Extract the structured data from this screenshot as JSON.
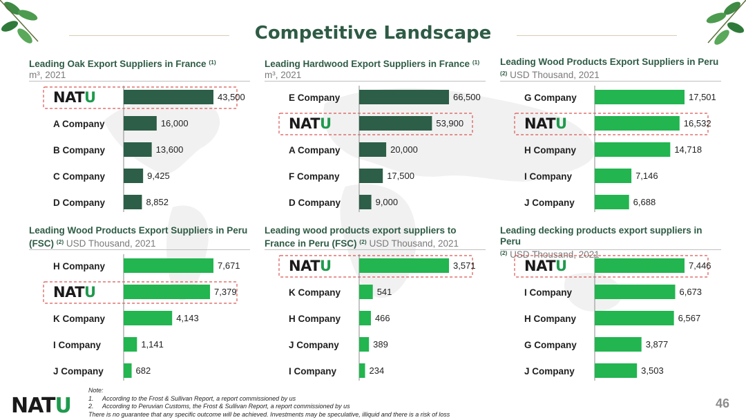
{
  "header": {
    "title": "Competitive Landscape"
  },
  "brand": {
    "name_main": "NAT",
    "name_accent": "U",
    "color_dark": "#2e5b45",
    "color_accent": "#1f9a4e",
    "bar_dark": "#2d5e47",
    "bar_green": "#22b550",
    "highlight": "#d9534f"
  },
  "panels": [
    {
      "title": "Leading Oak Export Suppliers in France",
      "note_ref": "(1)",
      "unit": "m³, 2021"
    },
    {
      "title": "Leading Hardwood Export Suppliers in France",
      "note_ref": "(1)",
      "unit": "m³, 2021"
    },
    {
      "title": "Leading Wood Products Export Suppliers in Peru",
      "note_ref": "(2)",
      "unit": "USD Thousand, 2021"
    },
    {
      "title": "Leading Wood Products Export Suppliers in Peru (FSC)",
      "note_ref": "(2)",
      "unit": "USD Thousand, 2021"
    },
    {
      "title": "Leading wood products export suppliers to France in Peru (FSC)",
      "note_ref": "(2)",
      "unit": "USD Thousand, 2021"
    },
    {
      "title": "Leading decking products export suppliers in Peru",
      "note_ref": "(2)",
      "unit": "USD Thousand, 2021"
    }
  ],
  "chart_data": [
    {
      "type": "bar",
      "orientation": "horizontal",
      "color": "dark",
      "categories": [
        "NATU",
        "A Company",
        "B Company",
        "C Company",
        "D Company"
      ],
      "values": [
        43500,
        16000,
        13600,
        9425,
        8852
      ],
      "labels": [
        "43,500",
        "16,000",
        "13,600",
        "9,425",
        "8,852"
      ],
      "highlight": 0
    },
    {
      "type": "bar",
      "orientation": "horizontal",
      "color": "dark",
      "categories": [
        "E Company",
        "NATU",
        "A Company",
        "F Company",
        "D Company"
      ],
      "values": [
        66500,
        53900,
        20000,
        17500,
        9000
      ],
      "labels": [
        "66,500",
        "53,900",
        "20,000",
        "17,500",
        "9,000"
      ],
      "highlight": 1
    },
    {
      "type": "bar",
      "orientation": "horizontal",
      "color": "green",
      "categories": [
        "G Company",
        "NATU",
        "H Company",
        "I Company",
        "J Company"
      ],
      "values": [
        17501,
        16532,
        14718,
        7146,
        6688
      ],
      "labels": [
        "17,501",
        "16,532",
        "14,718",
        "7,146",
        "6,688"
      ],
      "highlight": 1
    },
    {
      "type": "bar",
      "orientation": "horizontal",
      "color": "green",
      "categories": [
        "H Company",
        "NATU",
        "K Company",
        "I Company",
        "J Company"
      ],
      "values": [
        7671,
        7379,
        4143,
        1141,
        682
      ],
      "labels": [
        "7,671",
        "7,379",
        "4,143",
        "1,141",
        "682"
      ],
      "highlight": 1
    },
    {
      "type": "bar",
      "orientation": "horizontal",
      "color": "green",
      "categories": [
        "NATU",
        "K Company",
        "H Company",
        "J Company",
        "I Company"
      ],
      "values": [
        3571,
        541,
        466,
        389,
        234
      ],
      "labels": [
        "3,571",
        "541",
        "466",
        "389",
        "234"
      ],
      "highlight": 0
    },
    {
      "type": "bar",
      "orientation": "horizontal",
      "color": "green",
      "categories": [
        "NATU",
        "I Company",
        "H Company",
        "G Company",
        "J Company"
      ],
      "values": [
        7446,
        6673,
        6567,
        3877,
        3503
      ],
      "labels": [
        "7,446",
        "6,673",
        "6,567",
        "3,877",
        "3,503"
      ],
      "highlight": 0
    }
  ],
  "notes": {
    "heading": "Note:",
    "items": [
      {
        "num": "1.",
        "text": "According to the Frost & Sullivan Report, a report commissioned by us"
      },
      {
        "num": "2.",
        "text": "According to Peruvian Customs, the Frost & Sullivan Report, a report commissioned by us"
      }
    ],
    "disclaimer": "There is no guarantee that any specific outcome will be achieved. Investments may be speculative, illiquid and there is a risk of loss"
  },
  "footer": {
    "logo_main": "NAT",
    "logo_accent": "U",
    "page_number": "46"
  }
}
